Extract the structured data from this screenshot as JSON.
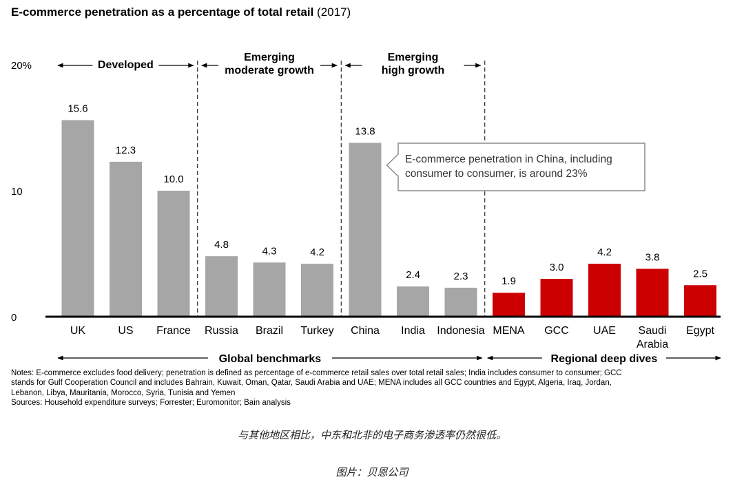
{
  "chart_data": {
    "type": "bar",
    "title": "E-commerce penetration as a percentage of total retail",
    "title_suffix": "(2017)",
    "categories": [
      "UK",
      "US",
      "France",
      "Russia",
      "Brazil",
      "Turkey",
      "China",
      "India",
      "Indonesia",
      "MENA",
      "GCC",
      "UAE",
      "Saudi Arabia",
      "Egypt"
    ],
    "values": [
      15.6,
      12.3,
      10.0,
      4.8,
      4.3,
      4.2,
      13.8,
      2.4,
      2.3,
      1.9,
      3.0,
      4.2,
      3.8,
      2.5
    ],
    "value_labels": [
      "15.6",
      "12.3",
      "10.0",
      "4.8",
      "4.3",
      "4.2",
      "13.8",
      "2.4",
      "2.3",
      "1.9",
      "3.0",
      "4.2",
      "3.8",
      "2.5"
    ],
    "highlighted": [
      false,
      false,
      false,
      false,
      false,
      false,
      false,
      false,
      false,
      true,
      true,
      true,
      true,
      true
    ],
    "ylim": [
      0,
      20
    ],
    "yticks": [
      "20%",
      "10",
      "0"
    ],
    "xlabel": "",
    "ylabel": "",
    "colors": {
      "global": "#a6a6a6",
      "regional": "#cc0000"
    },
    "groups": [
      {
        "label": "Developed",
        "range": [
          0,
          2
        ]
      },
      {
        "label": "Emerging\nmoderate growth",
        "range": [
          3,
          5
        ]
      },
      {
        "label": "Emerging\nhigh growth",
        "range": [
          6,
          8
        ]
      }
    ],
    "bottom_groups": [
      {
        "label": "Global benchmarks",
        "range": [
          0,
          8
        ]
      },
      {
        "label": "Regional deep dives",
        "range": [
          9,
          13
        ]
      }
    ],
    "callout": "E-commerce penetration in China, including\nconsumer to consumer, is around 23%"
  },
  "notes": {
    "lines": [
      "Notes: E-commerce excludes food delivery; penetration is defined as percentage of e-commerce retail sales over total retail sales; India includes consumer to consumer; GCC",
      "stands for Gulf Cooperation Council and includes Bahrain, Kuwait, Oman, Qatar, Saudi Arabia and UAE; MENA includes all GCC countries and Egypt, Algeria, Iraq, Jordan,",
      "Lebanon, Libya, Mauritania, Morocco, Syria, Tunisia and Yemen",
      "Sources: Household expenditure surveys; Forrester; Euromonitor; Bain analysis"
    ]
  },
  "caption": "与其他地区相比，中东和北非的电子商务渗透率仍然很低。",
  "source_caption": "图片：贝恩公司"
}
